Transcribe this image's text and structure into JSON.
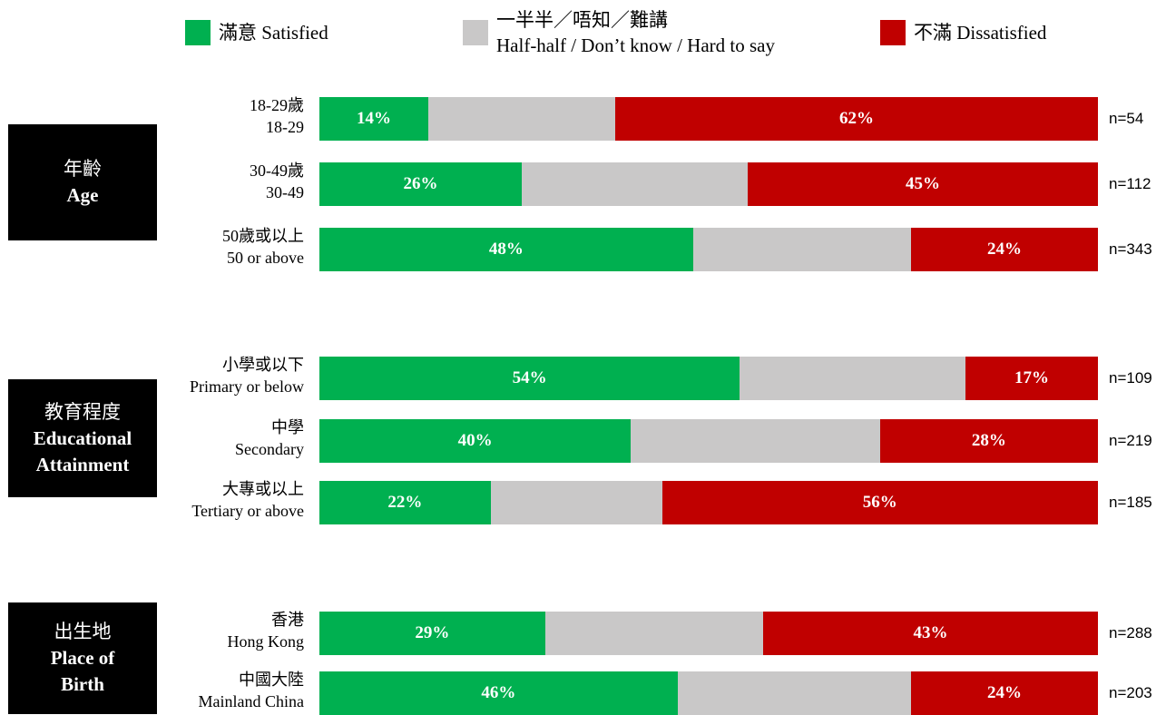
{
  "legend": {
    "satisfied": "滿意 Satisfied",
    "half_line1": "一半半／唔知／難講",
    "half_line2": "Half-half / Don’t know / Hard to say",
    "dissatisfied": "不滿 Dissatisfied"
  },
  "colors": {
    "satisfied": "#00b050",
    "half": "#c9c8c8",
    "dissatisfied": "#c00000",
    "group_box": "#000000"
  },
  "groups": [
    {
      "zh": "年齡",
      "en": "Age"
    },
    {
      "zh": "教育程度",
      "en": "Educational Attainment"
    },
    {
      "zh": "出生地",
      "en": "Place of Birth"
    }
  ],
  "chart_data": {
    "type": "bar",
    "orientation": "horizontal",
    "stacked": true,
    "xlim": [
      0,
      100
    ],
    "series_names": [
      "Satisfied",
      "Half-half / Don't know / Hard to say",
      "Dissatisfied"
    ],
    "categories": [
      {
        "group": "Age",
        "zh": "18-29歲",
        "en": "18-29",
        "satisfied": 14,
        "half": 24,
        "dissatisfied": 62,
        "sat_label": "14%",
        "dis_label": "62%",
        "n": "n=54"
      },
      {
        "group": "Age",
        "zh": "30-49歲",
        "en": "30-49",
        "satisfied": 26,
        "half": 29,
        "dissatisfied": 45,
        "sat_label": "26%",
        "dis_label": "45%",
        "n": "n=112"
      },
      {
        "group": "Age",
        "zh": "50歲或以上",
        "en": "50 or above",
        "satisfied": 48,
        "half": 28,
        "dissatisfied": 24,
        "sat_label": "48%",
        "dis_label": "24%",
        "n": "n=343"
      },
      {
        "group": "Educational Attainment",
        "zh": "小學或以下",
        "en": "Primary or below",
        "satisfied": 54,
        "half": 29,
        "dissatisfied": 17,
        "sat_label": "54%",
        "dis_label": "17%",
        "n": "n=109"
      },
      {
        "group": "Educational Attainment",
        "zh": "中學",
        "en": "Secondary",
        "satisfied": 40,
        "half": 32,
        "dissatisfied": 28,
        "sat_label": "40%",
        "dis_label": "28%",
        "n": "n=219"
      },
      {
        "group": "Educational Attainment",
        "zh": "大專或以上",
        "en": "Tertiary or above",
        "satisfied": 22,
        "half": 22,
        "dissatisfied": 56,
        "sat_label": "22%",
        "dis_label": "56%",
        "n": "n=185"
      },
      {
        "group": "Place of Birth",
        "zh": "香港",
        "en": "Hong Kong",
        "satisfied": 29,
        "half": 28,
        "dissatisfied": 43,
        "sat_label": "29%",
        "dis_label": "43%",
        "n": "n=288"
      },
      {
        "group": "Place of Birth",
        "zh": "中國大陸",
        "en": "Mainland China",
        "satisfied": 46,
        "half": 30,
        "dissatisfied": 24,
        "sat_label": "46%",
        "dis_label": "24%",
        "n": "n=203"
      }
    ]
  }
}
